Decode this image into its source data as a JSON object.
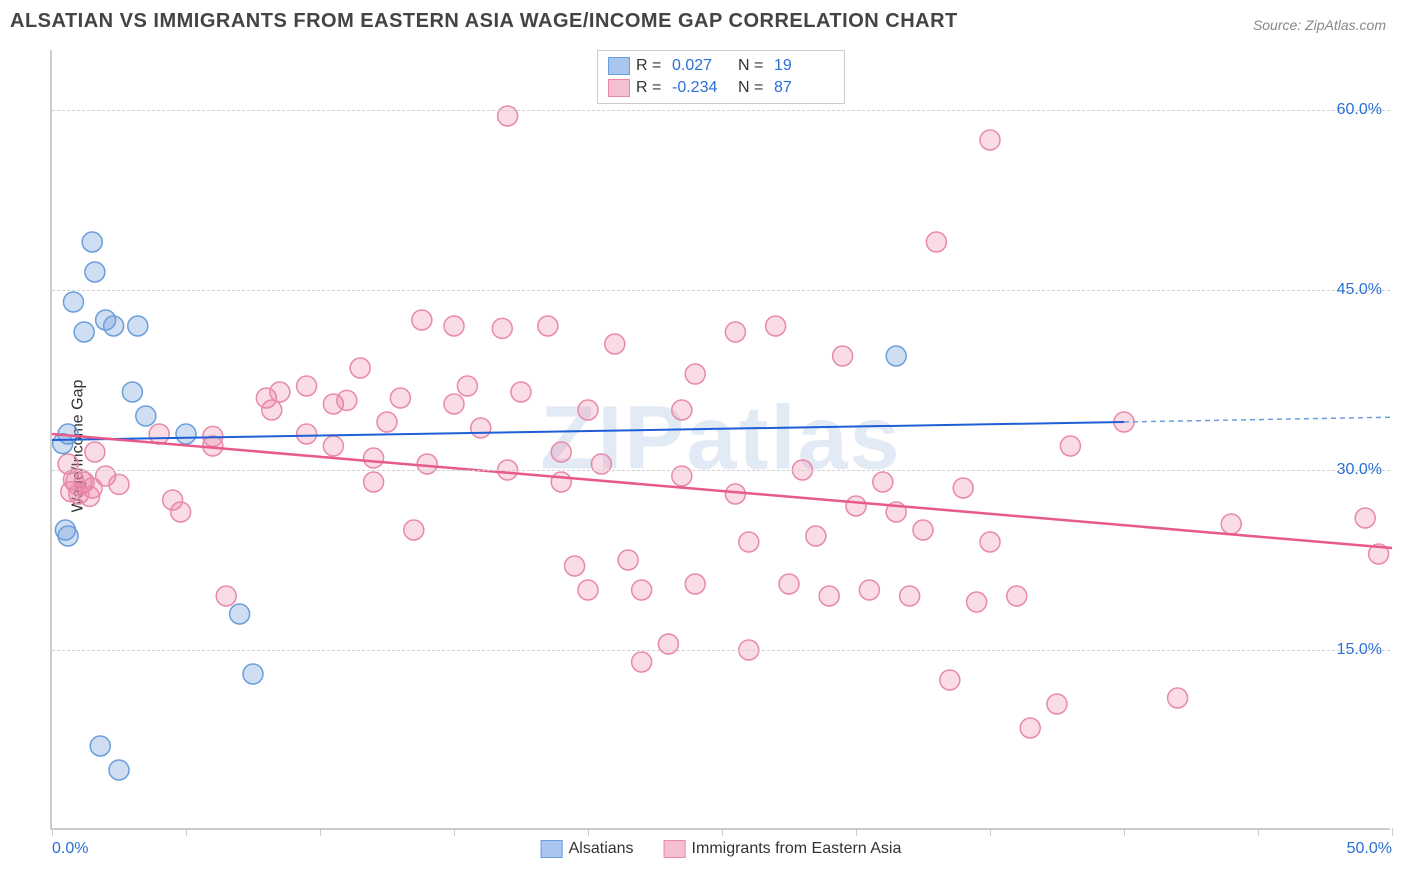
{
  "header": {
    "title": "ALSATIAN VS IMMIGRANTS FROM EASTERN ASIA WAGE/INCOME GAP CORRELATION CHART",
    "source": "Source: ZipAtlas.com"
  },
  "watermark": "ZIPatlas",
  "chart": {
    "type": "scatter",
    "ylabel": "Wage/Income Gap",
    "xlim": [
      0,
      50
    ],
    "ylim": [
      0,
      65
    ],
    "xtick_positions": [
      0,
      5,
      10,
      15,
      20,
      25,
      30,
      35,
      40,
      45,
      50
    ],
    "xtick_labels": {
      "0": "0.0%",
      "50": "50.0%"
    },
    "ytick_positions": [
      15,
      30,
      45,
      60
    ],
    "ytick_labels": {
      "15": "15.0%",
      "30": "30.0%",
      "45": "45.0%",
      "60": "60.0%"
    },
    "grid_color": "#d0d0d0",
    "background_color": "#ffffff",
    "marker_radius": 10,
    "marker_radius_large": 13,
    "series": [
      {
        "name": "Alsatians",
        "color_fill": "rgba(120,160,220,0.35)",
        "color_stroke": "#6a9edb",
        "swatch_fill": "#a9c6ee",
        "swatch_stroke": "#6a9edb",
        "R": "0.027",
        "N": "19",
        "trend": {
          "x1": 0,
          "y1": 32.5,
          "x2": 40,
          "y2": 34.0,
          "color": "#1f5ed6",
          "width": 2
        },
        "trend_ext": {
          "x1": 40,
          "y1": 34.0,
          "x2": 50,
          "y2": 34.4,
          "color": "#6a9edb",
          "dash": "5,4"
        },
        "points": [
          [
            0.4,
            32.2
          ],
          [
            1.2,
            41.5
          ],
          [
            1.5,
            49.0
          ],
          [
            0.8,
            44.0
          ],
          [
            1.6,
            46.5
          ],
          [
            2.3,
            42.0
          ],
          [
            2.0,
            42.5
          ],
          [
            3.2,
            42.0
          ],
          [
            0.6,
            33.0
          ],
          [
            3.0,
            36.5
          ],
          [
            3.5,
            34.5
          ],
          [
            0.6,
            24.5
          ],
          [
            0.5,
            25.0
          ],
          [
            7.0,
            18.0
          ],
          [
            7.5,
            13.0
          ],
          [
            1.8,
            7.0
          ],
          [
            2.5,
            5.0
          ],
          [
            31.5,
            39.5
          ],
          [
            5.0,
            33.0
          ]
        ]
      },
      {
        "name": "Immigrants from Eastern Asia",
        "color_fill": "rgba(235,130,160,0.28)",
        "color_stroke": "#e88aa8",
        "swatch_fill": "#f4c0d0",
        "swatch_stroke": "#e88aa8",
        "R": "-0.234",
        "N": "87",
        "trend": {
          "x1": 0,
          "y1": 33.0,
          "x2": 50,
          "y2": 23.5,
          "color": "#e75a8a",
          "width": 2.5
        },
        "points": [
          [
            0.6,
            30.5
          ],
          [
            0.8,
            29.2
          ],
          [
            1.2,
            29.0
          ],
          [
            1.5,
            28.5
          ],
          [
            1.0,
            28.0
          ],
          [
            2.0,
            29.5
          ],
          [
            1.6,
            31.5
          ],
          [
            2.5,
            28.8
          ],
          [
            0.7,
            28.2
          ],
          [
            1.4,
            27.8
          ],
          [
            4.0,
            33.0
          ],
          [
            4.5,
            27.5
          ],
          [
            6.0,
            32.0
          ],
          [
            6.0,
            32.8
          ],
          [
            6.5,
            19.5
          ],
          [
            4.8,
            26.5
          ],
          [
            8.0,
            36.0
          ],
          [
            8.2,
            35.0
          ],
          [
            8.5,
            36.5
          ],
          [
            9.5,
            33.0
          ],
          [
            9.5,
            37.0
          ],
          [
            10.5,
            35.5
          ],
          [
            11.0,
            35.8
          ],
          [
            10.5,
            32.0
          ],
          [
            11.5,
            38.5
          ],
          [
            12.0,
            31.0
          ],
          [
            12.5,
            34.0
          ],
          [
            13.0,
            36.0
          ],
          [
            13.5,
            25.0
          ],
          [
            14.0,
            30.5
          ],
          [
            13.8,
            42.5
          ],
          [
            15.0,
            35.5
          ],
          [
            15.0,
            42.0
          ],
          [
            15.5,
            37.0
          ],
          [
            17.0,
            59.5
          ],
          [
            16.0,
            33.5
          ],
          [
            16.8,
            41.8
          ],
          [
            17.0,
            30.0
          ],
          [
            17.5,
            36.5
          ],
          [
            18.5,
            42.0
          ],
          [
            19.0,
            31.5
          ],
          [
            19.5,
            22.0
          ],
          [
            20.0,
            35.0
          ],
          [
            20.0,
            20.0
          ],
          [
            20.5,
            30.5
          ],
          [
            21.0,
            40.5
          ],
          [
            21.5,
            22.5
          ],
          [
            22.0,
            20.0
          ],
          [
            22.0,
            14.0
          ],
          [
            23.5,
            29.5
          ],
          [
            23.0,
            15.5
          ],
          [
            23.5,
            35.0
          ],
          [
            24.0,
            20.5
          ],
          [
            24.0,
            38.0
          ],
          [
            25.5,
            28.0
          ],
          [
            25.5,
            41.5
          ],
          [
            26.0,
            15.0
          ],
          [
            26.0,
            24.0
          ],
          [
            27.0,
            42.0
          ],
          [
            27.5,
            20.5
          ],
          [
            28.0,
            30.0
          ],
          [
            28.5,
            24.5
          ],
          [
            29.0,
            19.5
          ],
          [
            29.5,
            39.5
          ],
          [
            30.0,
            27.0
          ],
          [
            30.5,
            20.0
          ],
          [
            31.0,
            29.0
          ],
          [
            31.5,
            26.5
          ],
          [
            32.0,
            19.5
          ],
          [
            32.5,
            25.0
          ],
          [
            33.0,
            49.0
          ],
          [
            33.5,
            12.5
          ],
          [
            34.0,
            28.5
          ],
          [
            34.5,
            19.0
          ],
          [
            35.0,
            24.0
          ],
          [
            35.0,
            57.5
          ],
          [
            36.0,
            19.5
          ],
          [
            36.5,
            8.5
          ],
          [
            38.0,
            32.0
          ],
          [
            37.5,
            10.5
          ],
          [
            40.0,
            34.0
          ],
          [
            42.0,
            11.0
          ],
          [
            44.0,
            25.5
          ],
          [
            49.0,
            26.0
          ],
          [
            49.5,
            23.0
          ],
          [
            19.0,
            29.0
          ],
          [
            12.0,
            29.0
          ]
        ],
        "points_large": [
          [
            1.0,
            29.0
          ]
        ]
      }
    ]
  }
}
